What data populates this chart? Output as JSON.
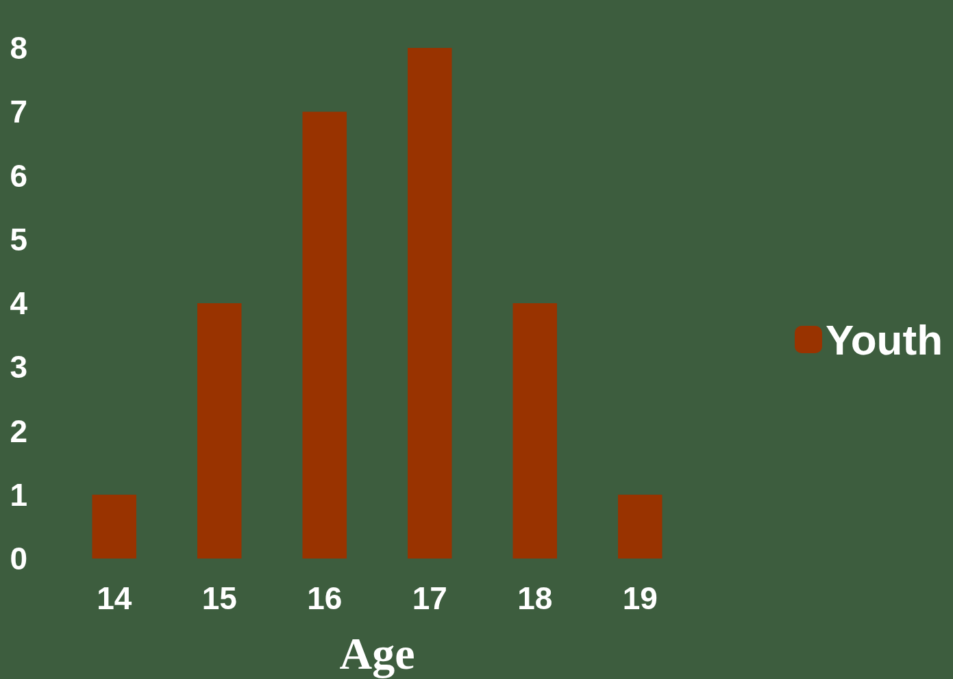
{
  "chart_data": {
    "type": "bar",
    "xlabel": "Age",
    "categories": [
      "14",
      "15",
      "16",
      "17",
      "18",
      "19"
    ],
    "series": [
      {
        "name": "Youth",
        "color": "#993300",
        "values": [
          1,
          4,
          7,
          8,
          4,
          1
        ]
      }
    ],
    "ylim": [
      0,
      8
    ],
    "yticks": [
      0,
      1,
      2,
      3,
      4,
      5,
      6,
      7,
      8
    ],
    "grid": false,
    "legend": "right"
  }
}
